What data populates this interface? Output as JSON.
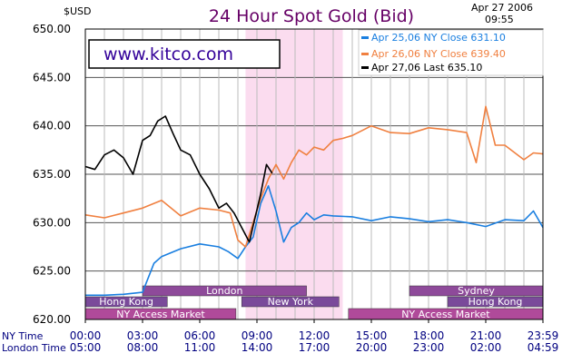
{
  "header": {
    "currency": "$USD",
    "title": "24 Hour Spot Gold (Bid)",
    "date": "Apr 27 2006",
    "time": "09:55"
  },
  "website": "www.kitco.com",
  "legend": [
    {
      "text": "Apr 25,06  NY Close 631.10",
      "color": "#1a7fe0"
    },
    {
      "text": "Apr 26,06  NY Close 639.40",
      "color": "#f08040"
    },
    {
      "text": "Apr 27,06  Last 635.10",
      "color": "#000000"
    }
  ],
  "row_labels": {
    "ny": "NY Time",
    "london": "London Time"
  },
  "chart_data": {
    "type": "line",
    "title": "24 Hour Spot Gold (Bid)",
    "ylabel": "$USD",
    "ylim": [
      620,
      650
    ],
    "yticks": [
      "650.00",
      "645.00",
      "640.00",
      "635.00",
      "630.00",
      "625.00",
      "620.00"
    ],
    "x_ny_ticks": [
      "00:00",
      "03:00",
      "06:00",
      "09:00",
      "12:00",
      "15:00",
      "18:00",
      "21:00",
      "23:59"
    ],
    "x_london_ticks": [
      "05:00",
      "08:00",
      "11:00",
      "14:00",
      "17:00",
      "20:00",
      "23:00",
      "02:00",
      "04:59"
    ],
    "grid": true,
    "legend_position": "top-right",
    "x_unit": "NY time, hours",
    "xlim": [
      0,
      24
    ],
    "highlight_hours": [
      8.4,
      13.5
    ],
    "sessions": [
      {
        "label": "Hong Kong",
        "start": 0,
        "end": 4.3,
        "color": "#7a4a9a"
      },
      {
        "label": "London",
        "start": 3.0,
        "end": 11.6,
        "color": "#8e4a9a"
      },
      {
        "label": "New York",
        "start": 8.2,
        "end": 13.3,
        "color": "#7a4a9a"
      },
      {
        "label": "NY Access Market",
        "start": 0,
        "end": 7.9,
        "color": "#b04a9a"
      },
      {
        "label": "Sydney",
        "start": 17.0,
        "end": 24,
        "color": "#8e4a9a"
      },
      {
        "label": "Hong Kong",
        "start": 19.0,
        "end": 24,
        "color": "#7a4a9a"
      },
      {
        "label": "NY Access Market",
        "start": 13.8,
        "end": 24,
        "color": "#b04a9a"
      }
    ],
    "series": [
      {
        "name": "Apr 25,06  NY Close 631.10",
        "color": "#1a7fe0",
        "x": [
          0,
          1,
          2,
          3,
          3.6,
          4,
          5,
          6,
          7,
          7.5,
          8,
          8.4,
          8.8,
          9.2,
          9.6,
          10,
          10.4,
          10.8,
          11.2,
          11.6,
          12,
          12.5,
          13,
          14,
          15,
          16,
          17,
          18,
          19,
          20,
          21,
          22,
          23,
          23.5,
          24
        ],
        "values": [
          622.5,
          622.5,
          622.6,
          622.8,
          625.8,
          626.5,
          627.3,
          627.8,
          627.5,
          627.0,
          626.3,
          627.5,
          628.5,
          632.0,
          633.8,
          631.2,
          628.0,
          629.5,
          630.0,
          631.0,
          630.3,
          630.8,
          630.7,
          630.6,
          630.2,
          630.6,
          630.4,
          630.1,
          630.3,
          630.0,
          629.6,
          630.3,
          630.2,
          631.2,
          629.5
        ]
      },
      {
        "name": "Apr 26,06  NY Close 639.40",
        "color": "#f08040",
        "x": [
          0,
          1,
          2,
          3,
          4,
          5,
          6,
          7,
          7.6,
          8,
          8.4,
          8.8,
          9.2,
          9.6,
          10,
          10.4,
          10.8,
          11.2,
          11.6,
          12,
          12.5,
          13,
          13.5,
          14,
          15,
          16,
          17,
          18,
          19,
          20,
          20.5,
          21,
          21.5,
          22,
          23,
          23.5,
          24
        ],
        "values": [
          630.8,
          630.5,
          631.0,
          631.5,
          632.3,
          630.7,
          631.5,
          631.3,
          631.0,
          628.2,
          627.5,
          630.0,
          632.5,
          634.5,
          636.0,
          634.5,
          636.2,
          637.5,
          637.0,
          637.8,
          637.5,
          638.5,
          638.7,
          639.0,
          640.0,
          639.3,
          639.2,
          639.8,
          639.6,
          639.3,
          636.2,
          642.0,
          638.0,
          638.0,
          636.5,
          637.2,
          637.1
        ]
      },
      {
        "name": "Apr 27,06  Last 635.10",
        "color": "#000000",
        "x": [
          0,
          0.5,
          1,
          1.5,
          2,
          2.5,
          3,
          3.4,
          3.8,
          4.2,
          4.6,
          5,
          5.5,
          6,
          6.5,
          7,
          7.4,
          7.8,
          8.2,
          8.6,
          8.9,
          9.2,
          9.5,
          9.8
        ],
        "values": [
          635.8,
          635.5,
          637.0,
          637.5,
          636.7,
          635.0,
          638.5,
          639.0,
          640.5,
          641.0,
          639.2,
          637.5,
          637.0,
          635.0,
          633.5,
          631.5,
          632.0,
          631.0,
          629.5,
          628.0,
          630.5,
          633.0,
          636.0,
          635.1
        ]
      }
    ]
  }
}
